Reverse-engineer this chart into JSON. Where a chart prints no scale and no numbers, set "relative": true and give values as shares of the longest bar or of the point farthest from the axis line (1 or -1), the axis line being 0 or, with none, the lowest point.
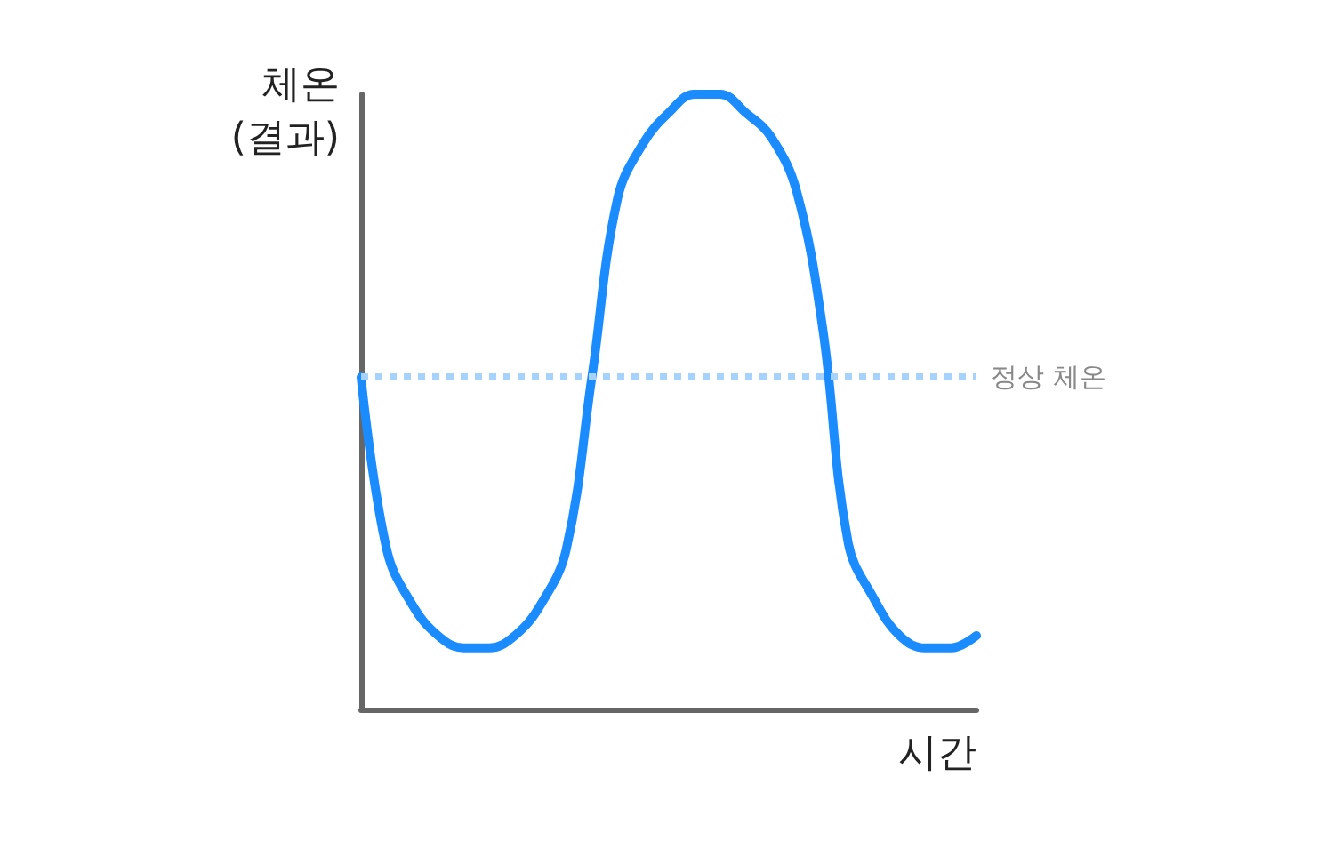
{
  "chart_data": {
    "type": "line",
    "relative": true,
    "xlabel": "시간",
    "ylabel": "체온\n(결과)",
    "categories": [
      null,
      null,
      null,
      null,
      null,
      null,
      null,
      null,
      null,
      null,
      null,
      null,
      null,
      null,
      null,
      null,
      null,
      null,
      null,
      null,
      null,
      null,
      null,
      null,
      null
    ],
    "series": [
      {
        "color": "#1a8cff",
        "values": [
          0.54,
          0.26,
          0.17,
          0.12,
          0.1,
          0.1,
          0.12,
          0.17,
          0.26,
          0.54,
          0.83,
          0.92,
          0.97,
          1,
          1,
          0.97,
          0.93,
          0.84,
          0.62,
          0.27,
          0.18,
          0.12,
          0.1,
          0.1,
          0.12
        ]
      }
    ],
    "ref_lines": [
      {
        "axis": "y",
        "value": 0.54,
        "label": "정상 체온",
        "color": "#a6d2ff",
        "line_style": "dotted"
      }
    ],
    "marker": "none",
    "line_style": "solid"
  }
}
